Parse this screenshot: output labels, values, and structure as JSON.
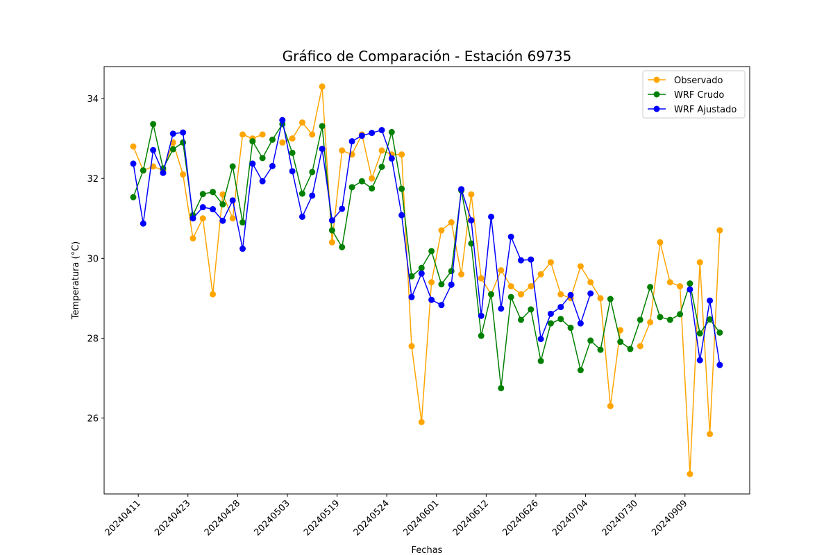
{
  "chart_data": {
    "type": "line",
    "title": "Gráfico de Comparación - Estación 69735",
    "xlabel": "Fechas",
    "ylabel": "Temperatura (°C)",
    "ylim": [
      24.1,
      34.8
    ],
    "yticks": [
      26,
      28,
      30,
      32,
      34
    ],
    "xtick_positions": [
      0.5,
      5.5,
      10.5,
      15.5,
      20.5,
      25.5,
      30.5,
      35.5,
      40.5,
      45.5,
      50.5,
      55.5
    ],
    "xtick_labels": [
      "20240411",
      "20240423",
      "20240428",
      "20240503",
      "20240519",
      "20240524",
      "20240601",
      "20240612",
      "20240626",
      "20240704",
      "20240730",
      "20240909"
    ],
    "grid": false,
    "legend_position": "top-right",
    "series": [
      {
        "name": "Observado",
        "color": "#ffa500",
        "values": [
          32.8,
          32.2,
          32.3,
          32.2,
          32.9,
          32.1,
          30.5,
          31.0,
          29.1,
          31.6,
          31.0,
          33.1,
          33.0,
          33.1,
          null,
          32.9,
          33.0,
          33.4,
          33.1,
          34.3,
          30.4,
          32.7,
          32.6,
          33.1,
          32.0,
          32.7,
          32.6,
          32.6,
          27.8,
          25.9,
          29.4,
          30.7,
          30.9,
          29.6,
          31.6,
          29.5,
          29.1,
          29.7,
          29.3,
          29.1,
          29.3,
          29.6,
          29.9,
          29.1,
          29.0,
          29.8,
          29.4,
          29.0,
          26.3,
          28.2,
          null,
          27.8,
          28.4,
          30.4,
          29.4,
          29.3,
          24.6,
          29.9,
          25.6,
          30.7
        ]
      },
      {
        "name": "WRF Crudo",
        "color": "#008000",
        "values": [
          31.53,
          32.2,
          33.36,
          32.25,
          32.73,
          32.9,
          31.08,
          31.61,
          31.66,
          31.35,
          32.3,
          30.9,
          32.93,
          32.51,
          32.97,
          33.36,
          32.64,
          31.62,
          32.16,
          33.31,
          30.7,
          30.28,
          31.78,
          31.93,
          31.75,
          32.29,
          33.16,
          31.74,
          29.55,
          29.76,
          30.18,
          29.35,
          29.68,
          31.7,
          30.37,
          28.06,
          29.1,
          26.75,
          29.03,
          28.46,
          28.72,
          27.43,
          28.37,
          28.48,
          28.26,
          27.2,
          27.94,
          27.71,
          28.98,
          27.91,
          27.73,
          28.46,
          29.28,
          28.53,
          28.46,
          28.6,
          29.37,
          28.12,
          28.47,
          28.14
        ]
      },
      {
        "name": "WRF Ajustado",
        "color": "#0000ff",
        "values": [
          32.37,
          30.87,
          32.71,
          32.14,
          33.12,
          33.15,
          31.0,
          31.28,
          31.23,
          30.94,
          31.45,
          30.24,
          32.37,
          31.93,
          32.31,
          33.46,
          32.18,
          31.04,
          31.57,
          32.74,
          30.95,
          31.24,
          32.93,
          33.07,
          33.14,
          33.21,
          32.5,
          31.08,
          29.03,
          29.62,
          28.96,
          28.83,
          29.34,
          31.73,
          30.95,
          28.56,
          31.04,
          28.74,
          30.54,
          29.95,
          29.97,
          27.98,
          28.61,
          28.78,
          29.08,
          28.37,
          29.12,
          null,
          null,
          null,
          null,
          null,
          null,
          null,
          null,
          null,
          29.22,
          27.45,
          28.94,
          27.33
        ]
      }
    ]
  }
}
